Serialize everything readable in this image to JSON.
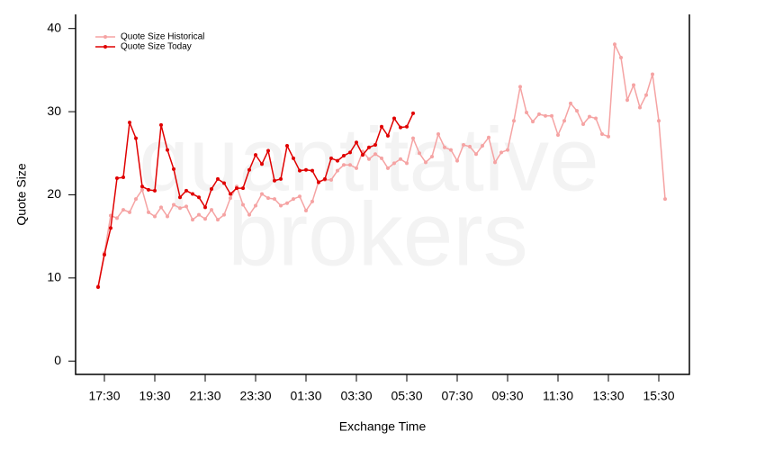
{
  "chart_data": {
    "type": "line",
    "watermark": [
      "quantitative",
      "brokers"
    ],
    "x_label": "Exchange Time",
    "y_label": "Quote Size",
    "x": [
      "17:15",
      "17:30",
      "17:45",
      "18:00",
      "18:15",
      "18:30",
      "18:45",
      "19:00",
      "19:15",
      "19:30",
      "19:45",
      "20:00",
      "20:15",
      "20:30",
      "20:45",
      "21:00",
      "21:15",
      "21:30",
      "21:45",
      "22:00",
      "22:15",
      "22:30",
      "22:45",
      "23:00",
      "23:15",
      "23:30",
      "23:45",
      "00:00",
      "00:15",
      "00:30",
      "00:45",
      "01:00",
      "01:15",
      "01:30",
      "01:45",
      "02:00",
      "02:15",
      "02:30",
      "02:45",
      "03:00",
      "03:15",
      "03:30",
      "03:45",
      "04:00",
      "04:15",
      "04:30",
      "04:45",
      "05:00",
      "05:15",
      "05:30",
      "05:45",
      "06:00",
      "06:15",
      "06:30",
      "06:45",
      "07:00",
      "07:15",
      "07:30",
      "07:45",
      "08:00",
      "08:15",
      "08:30",
      "08:45",
      "09:00",
      "09:15",
      "09:30",
      "09:45",
      "10:00",
      "10:15",
      "10:30",
      "10:45",
      "11:00",
      "11:15",
      "11:30",
      "11:45",
      "12:00",
      "12:15",
      "12:30",
      "12:45",
      "13:00",
      "13:15",
      "13:30",
      "13:45",
      "14:00",
      "14:15",
      "14:30",
      "14:45",
      "15:00",
      "15:15",
      "15:30",
      "15:45"
    ],
    "xticks": [
      "17:30",
      "19:30",
      "21:30",
      "23:30",
      "01:30",
      "03:30",
      "05:30",
      "07:30",
      "09:30",
      "11:30",
      "13:30",
      "15:30"
    ],
    "ylim": [
      -1.6,
      41.7
    ],
    "yticks": [
      0,
      10,
      20,
      30,
      40
    ],
    "legend": "top-left",
    "series": [
      {
        "name": "Quote Size Historical",
        "color": "#f5a3a3",
        "values": [
          9.0,
          13.0,
          17.5,
          17.2,
          18.2,
          17.9,
          19.5,
          20.6,
          17.9,
          17.4,
          18.5,
          17.4,
          18.8,
          18.4,
          18.6,
          17.0,
          17.6,
          17.1,
          18.2,
          17.0,
          17.6,
          19.6,
          21.0,
          18.8,
          17.6,
          18.7,
          20.1,
          19.6,
          19.5,
          18.7,
          19.0,
          19.5,
          19.8,
          18.1,
          19.2,
          21.6,
          21.8,
          21.8,
          22.9,
          23.6,
          23.6,
          23.2,
          25.2,
          24.3,
          24.9,
          24.4,
          23.2,
          23.8,
          24.3,
          23.8,
          26.8,
          25.0,
          23.9,
          24.6,
          27.3,
          25.7,
          25.4,
          24.1,
          26.0,
          25.8,
          24.9,
          25.9,
          26.9,
          23.9,
          25.1,
          25.4,
          28.9,
          33.0,
          29.9,
          28.8,
          29.7,
          29.5,
          29.5,
          27.2,
          28.9,
          31.0,
          30.1,
          28.5,
          29.4,
          29.2,
          27.3,
          27.0,
          38.1,
          36.5,
          31.4,
          33.2,
          30.5,
          32.0,
          34.5,
          28.9,
          19.5
        ]
      },
      {
        "name": "Quote Size Today",
        "color": "#e00000",
        "values": [
          8.9,
          12.8,
          16.0,
          22.0,
          22.1,
          28.7,
          26.8,
          21.0,
          20.6,
          20.5,
          28.4,
          25.4,
          23.1,
          19.7,
          20.5,
          20.1,
          19.7,
          18.5,
          20.7,
          21.9,
          21.4,
          20.1,
          20.8,
          20.8,
          23.0,
          24.8,
          23.7,
          25.3,
          21.7,
          21.9,
          25.9,
          24.4,
          22.9,
          23.0,
          22.9,
          21.5,
          21.9,
          24.4,
          24.1,
          24.7,
          25.1,
          26.3,
          24.8,
          25.7,
          26.0,
          28.2,
          27.1,
          29.2,
          28.1,
          28.2,
          29.8,
          null,
          null,
          null,
          null,
          null,
          null,
          null,
          null,
          null,
          null,
          null,
          null,
          null,
          null,
          null,
          null,
          null,
          null,
          null,
          null,
          null,
          null,
          null,
          null,
          null,
          null,
          null,
          null,
          null,
          null,
          null,
          null,
          null,
          null,
          null,
          null,
          null,
          null,
          null,
          null
        ]
      }
    ]
  }
}
